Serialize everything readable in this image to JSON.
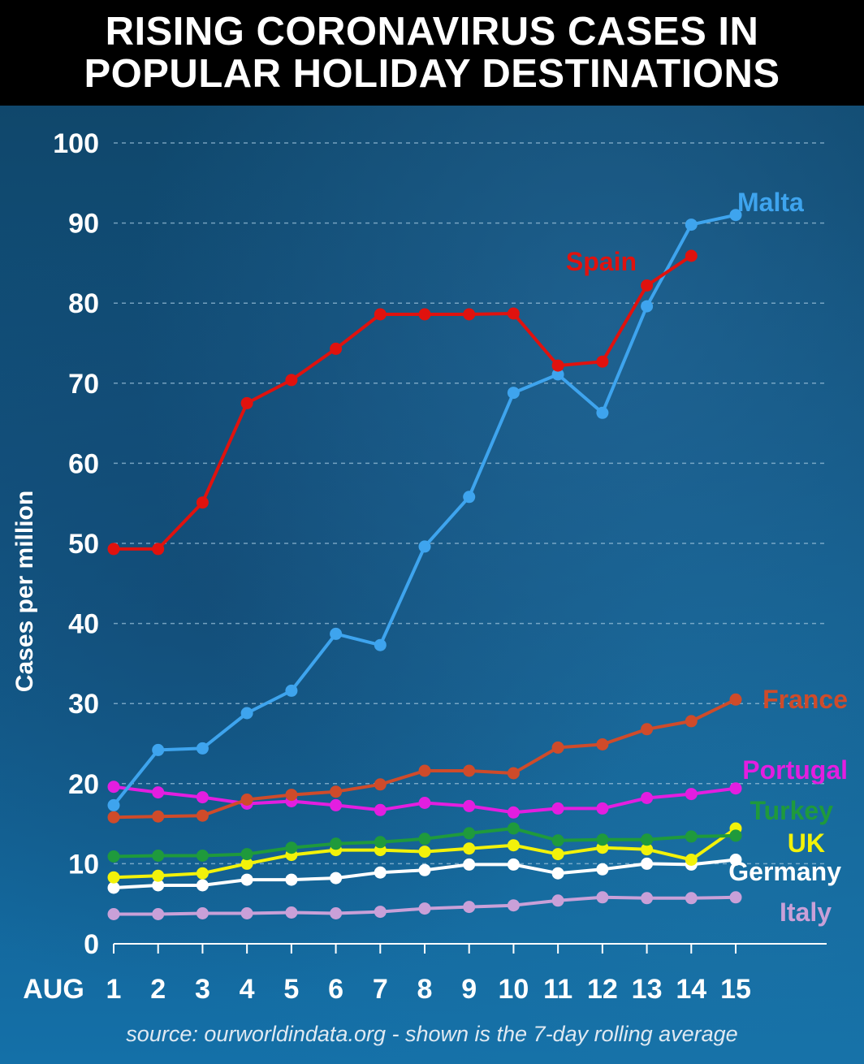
{
  "title": {
    "line1": "RISING CORONAVIRUS CASES IN",
    "line2": "POPULAR HOLIDAY DESTINATIONS"
  },
  "source_note": "source: ourworldindata.org - shown is the 7-day rolling average",
  "chart_data": {
    "type": "line",
    "title": "RISING CORONAVIRUS CASES IN POPULAR HOLIDAY DESTINATIONS",
    "xlabel": "AUG",
    "ylabel": "Cases per million",
    "x": [
      1,
      2,
      3,
      4,
      5,
      6,
      7,
      8,
      9,
      10,
      11,
      12,
      13,
      14,
      15
    ],
    "x_tick_labels": [
      "1",
      "2",
      "3",
      "4",
      "5",
      "6",
      "7",
      "8",
      "9",
      "10",
      "11",
      "12",
      "13",
      "14",
      "15"
    ],
    "y_ticks": [
      0,
      10,
      20,
      30,
      40,
      50,
      60,
      70,
      80,
      90,
      100
    ],
    "ylim": [
      0,
      100
    ],
    "grid": true,
    "series": [
      {
        "name": "Italy",
        "color": "#c9a0d8",
        "values": [
          3.7,
          3.7,
          3.8,
          3.8,
          3.9,
          3.8,
          4.0,
          4.4,
          4.6,
          4.8,
          5.4,
          5.8,
          5.7,
          5.7,
          5.8
        ]
      },
      {
        "name": "Germany",
        "color": "#ffffff",
        "values": [
          7.0,
          7.3,
          7.3,
          8.0,
          8.0,
          8.2,
          8.9,
          9.2,
          9.9,
          9.9,
          8.8,
          9.3,
          10.0,
          9.9,
          10.5
        ]
      },
      {
        "name": "UK",
        "color": "#f2f20a",
        "values": [
          8.3,
          8.5,
          8.8,
          10.0,
          11.1,
          11.7,
          11.7,
          11.5,
          11.9,
          12.3,
          11.2,
          12.0,
          11.8,
          10.5,
          14.4
        ]
      },
      {
        "name": "Turkey",
        "color": "#1f9a3c",
        "values": [
          10.9,
          11.0,
          11.0,
          11.2,
          12.0,
          12.5,
          12.7,
          13.1,
          13.8,
          14.4,
          12.9,
          13.0,
          13.0,
          13.4,
          13.5
        ]
      },
      {
        "name": "Portugal",
        "color": "#e31ee0",
        "values": [
          19.6,
          18.9,
          18.3,
          17.5,
          17.8,
          17.3,
          16.7,
          17.6,
          17.2,
          16.4,
          16.9,
          16.9,
          18.2,
          18.7,
          19.4
        ]
      },
      {
        "name": "France",
        "color": "#cf4b2a",
        "values": [
          15.8,
          15.9,
          16.0,
          18.0,
          18.6,
          19.0,
          19.9,
          21.6,
          21.6,
          21.3,
          24.5,
          24.9,
          26.8,
          27.8,
          30.5
        ]
      },
      {
        "name": "Malta",
        "color": "#3ea4ee",
        "values": [
          17.3,
          24.2,
          24.4,
          28.8,
          31.6,
          38.7,
          37.3,
          49.6,
          55.8,
          68.8,
          71.1,
          66.3,
          79.6,
          89.8,
          91.0
        ]
      },
      {
        "name": "Spain",
        "color": "#e0120e",
        "values": [
          49.3,
          49.3,
          55.1,
          67.5,
          70.4,
          74.3,
          78.6,
          78.6,
          78.6,
          78.7,
          72.2,
          72.7,
          82.2,
          85.9,
          null
        ]
      }
    ]
  }
}
